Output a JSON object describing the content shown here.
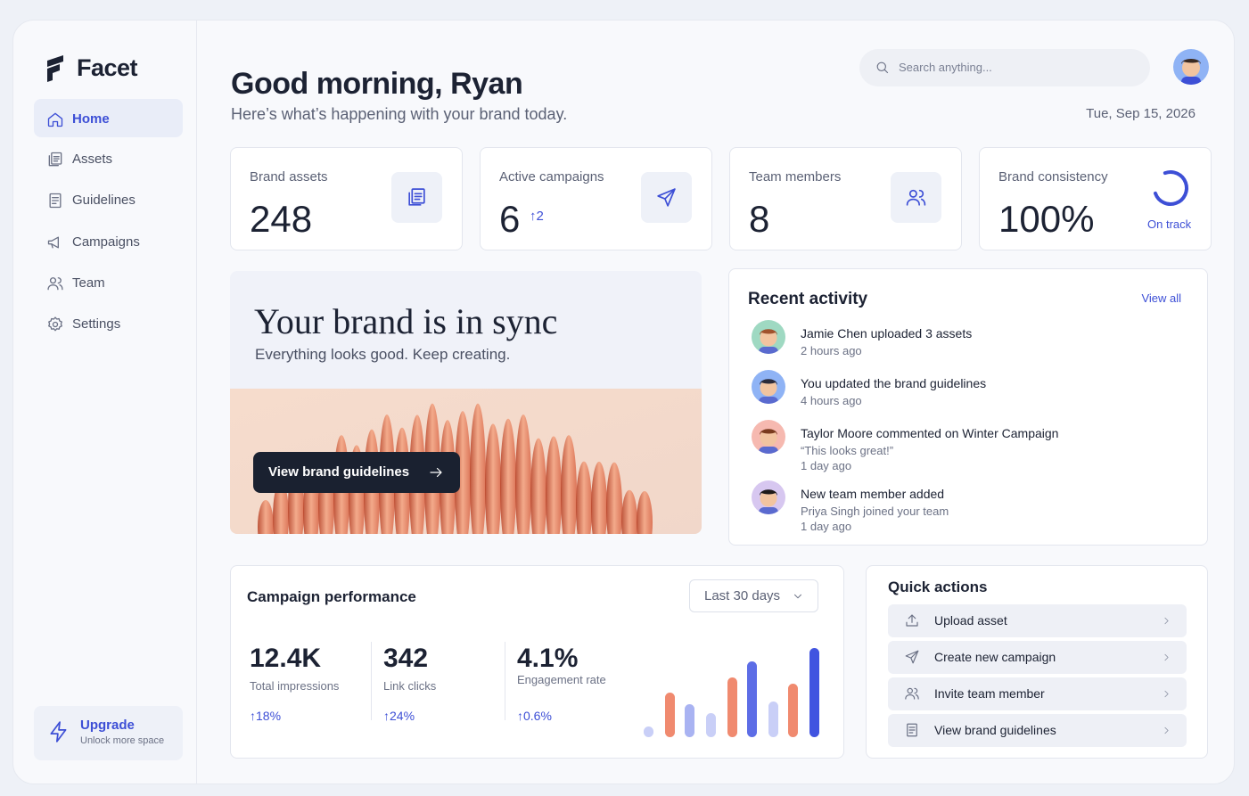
{
  "brand": "Facet",
  "nav": [
    "Home",
    "Assets",
    "Guidelines",
    "Campaigns",
    "Team",
    "Settings"
  ],
  "upgrade": {
    "title": "Upgrade",
    "subtitle": "Unlock more space"
  },
  "header": {
    "greeting": "Good morning, Ryan",
    "subtitle": "Here’s what’s happening with your brand today.",
    "search_placeholder": "Search anything...",
    "date": "Tue, Sep 15, 2026"
  },
  "stats": [
    {
      "label": "Brand assets",
      "value": "248"
    },
    {
      "label": "Active campaigns",
      "value": "6",
      "delta": "↑2"
    },
    {
      "label": "Team members",
      "value": "8"
    },
    {
      "label": "Brand consistency",
      "value": "100%",
      "status": "On track"
    }
  ],
  "hero": {
    "title": "Your brand is in sync",
    "subtitle": "Everything looks good. Keep creating.",
    "button": "View brand guidelines"
  },
  "activity": {
    "title": "Recent activity",
    "link": "View all",
    "items": [
      {
        "text": "Jamie Chen uploaded 3 assets",
        "time": "2 hours ago"
      },
      {
        "text": "You updated the brand guidelines",
        "time": "4 hours ago"
      },
      {
        "text": "Taylor Moore commented on Winter Campaign",
        "detail": "“This looks great!”",
        "time": "1 day ago"
      },
      {
        "text": "New team member added",
        "detail": "Priya Singh joined your team",
        "time": "1 day ago"
      }
    ]
  },
  "performance": {
    "title": "Campaign performance",
    "range": "Last 30 days",
    "metrics": [
      {
        "value": "12.4K",
        "label": "Total impressions",
        "change": "↑18%"
      },
      {
        "value": "342",
        "label": "Link clicks",
        "change": "↑24%"
      },
      {
        "value": "4.1%",
        "label": "Engagement rate",
        "change": "↑0.6%"
      }
    ]
  },
  "quick_actions": {
    "title": "Quick actions",
    "items": [
      "Upload asset",
      "Create new campaign",
      "Invite team member",
      "View brand guidelines"
    ]
  }
}
